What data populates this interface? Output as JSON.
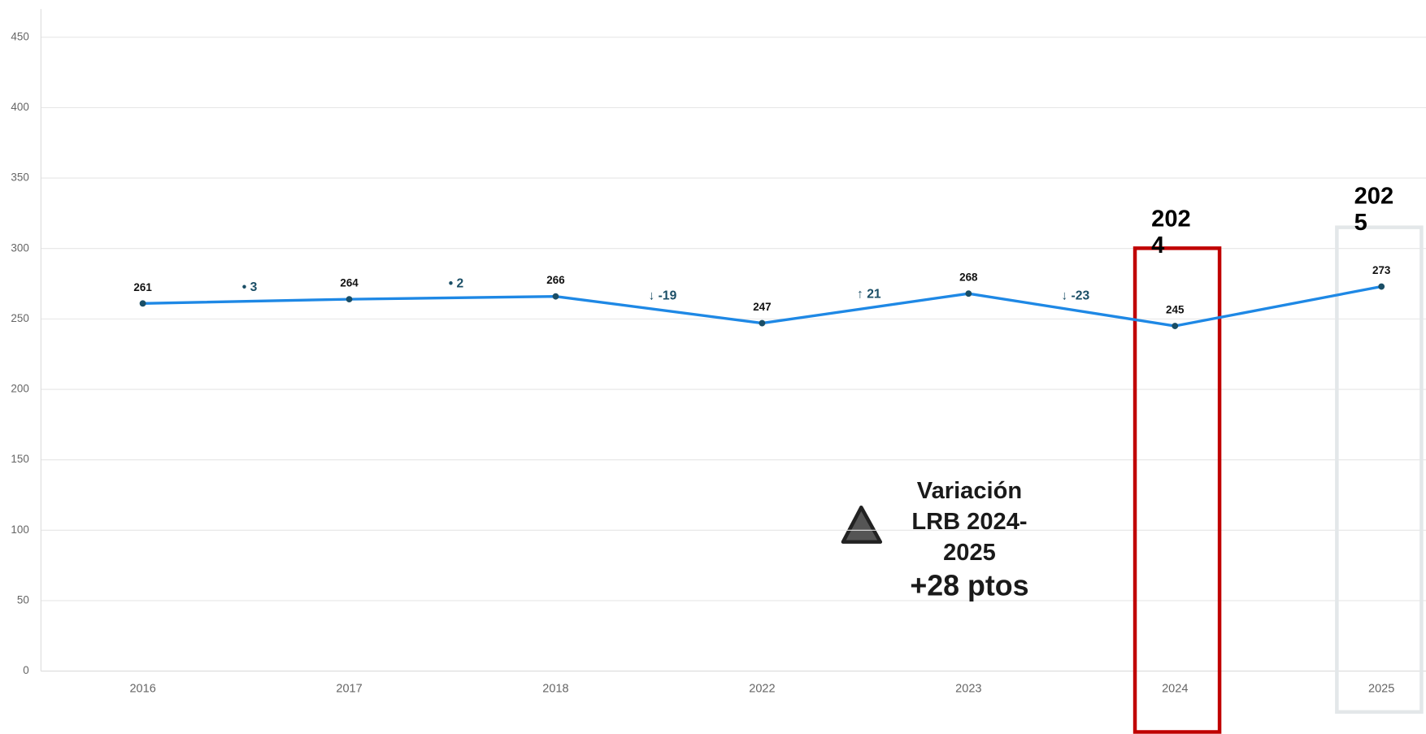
{
  "chart_data": {
    "type": "line",
    "categories": [
      "2016",
      "2017",
      "2018",
      "2022",
      "2023",
      "2024",
      "2025"
    ],
    "values": [
      261,
      264,
      266,
      247,
      268,
      245,
      273
    ],
    "color": "#1e88e5",
    "marker_color": "#1a4e66",
    "ylim": [
      0,
      470
    ],
    "yticks": [
      0,
      50,
      100,
      150,
      200,
      250,
      300,
      350,
      400,
      450
    ],
    "grid": true,
    "variation_labels": [
      "• 3",
      "• 2",
      "↓ -19",
      "↑ 21",
      "↓ -23"
    ],
    "highlights": [
      {
        "label": "2024",
        "color": "#c00000"
      },
      {
        "label": "2025",
        "color": "#e3e7e9"
      }
    ],
    "annotation": {
      "title": "Variación LRB 2024-2025",
      "value": "+28 ptos"
    }
  }
}
